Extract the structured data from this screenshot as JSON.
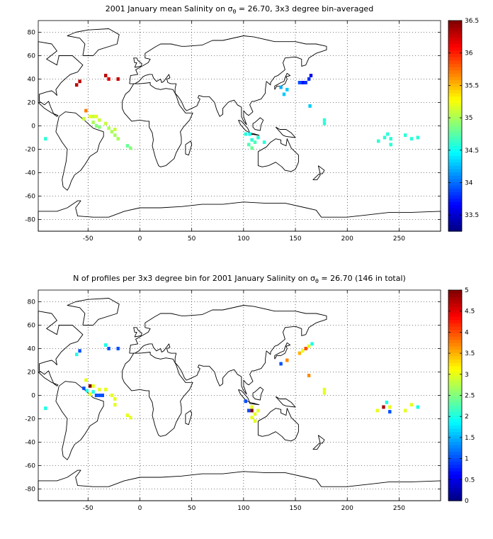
{
  "chart_data": [
    {
      "type": "heatmap",
      "title": "2001 January mean Salinity on σθ = 26.70, 3x3 degree bin-averaged",
      "title_parts": {
        "before": "2001 January mean Salinity on σ",
        "sub": "θ",
        "after": " = 26.70, 3x3 degree bin-averaged"
      },
      "xlim": [
        -98,
        290
      ],
      "ylim": [
        -90,
        90
      ],
      "xticks": [
        -50,
        0,
        50,
        100,
        150,
        200,
        250
      ],
      "yticks": [
        -80,
        -60,
        -40,
        -20,
        0,
        20,
        40,
        60,
        80
      ],
      "grid": true,
      "colorbar": {
        "min": 33.25,
        "max": 36.5,
        "ticks": [
          33.5,
          34,
          34.5,
          35,
          35.5,
          36,
          36.5
        ]
      },
      "points": [
        {
          "lon": -91,
          "lat": -11,
          "value": 34.6
        },
        {
          "lon": -61,
          "lat": 35,
          "value": 36.3
        },
        {
          "lon": -58,
          "lat": 38,
          "value": 36.3
        },
        {
          "lon": -52,
          "lat": 13,
          "value": 35.7
        },
        {
          "lon": -54,
          "lat": 6,
          "value": 35.1
        },
        {
          "lon": -48,
          "lat": 8,
          "value": 35.2
        },
        {
          "lon": -45,
          "lat": 8,
          "value": 35.1
        },
        {
          "lon": -42,
          "lat": 8,
          "value": 35.2
        },
        {
          "lon": -39,
          "lat": 5,
          "value": 35.1
        },
        {
          "lon": -45,
          "lat": 3,
          "value": 35.0
        },
        {
          "lon": -42,
          "lat": 0,
          "value": 34.9
        },
        {
          "lon": -39,
          "lat": -1,
          "value": 34.9
        },
        {
          "lon": -33,
          "lat": 2,
          "value": 35.1
        },
        {
          "lon": -30,
          "lat": -2,
          "value": 35.0
        },
        {
          "lon": -27,
          "lat": -5,
          "value": 35.0
        },
        {
          "lon": -24,
          "lat": -3,
          "value": 35.1
        },
        {
          "lon": -24,
          "lat": -8,
          "value": 35.0
        },
        {
          "lon": -21,
          "lat": -11,
          "value": 35.0
        },
        {
          "lon": -12,
          "lat": -17,
          "value": 34.8
        },
        {
          "lon": -9,
          "lat": -19,
          "value": 34.9
        },
        {
          "lon": -33,
          "lat": 43,
          "value": 36.3
        },
        {
          "lon": -30,
          "lat": 40,
          "value": 36.2
        },
        {
          "lon": -21,
          "lat": 40,
          "value": 36.3
        },
        {
          "lon": 102,
          "lat": -7,
          "value": 34.6
        },
        {
          "lon": 106,
          "lat": -7,
          "value": 34.5
        },
        {
          "lon": 108,
          "lat": -12,
          "value": 34.6
        },
        {
          "lon": 105,
          "lat": -16,
          "value": 34.7
        },
        {
          "lon": 108,
          "lat": -19,
          "value": 34.8
        },
        {
          "lon": 111,
          "lat": -14,
          "value": 34.7
        },
        {
          "lon": 114,
          "lat": -10,
          "value": 34.6
        },
        {
          "lon": 120,
          "lat": -14,
          "value": 34.6
        },
        {
          "lon": 136,
          "lat": 33,
          "value": 34.2
        },
        {
          "lon": 139,
          "lat": 27,
          "value": 34.3
        },
        {
          "lon": 142,
          "lat": 31,
          "value": 34.3
        },
        {
          "lon": 154,
          "lat": 37,
          "value": 33.9
        },
        {
          "lon": 157,
          "lat": 37,
          "value": 33.7
        },
        {
          "lon": 160,
          "lat": 37,
          "value": 33.8
        },
        {
          "lon": 163,
          "lat": 40,
          "value": 33.8
        },
        {
          "lon": 165,
          "lat": 43,
          "value": 33.6
        },
        {
          "lon": 164,
          "lat": 17,
          "value": 34.3
        },
        {
          "lon": 178,
          "lat": 5,
          "value": 34.6
        },
        {
          "lon": 178,
          "lat": 2,
          "value": 34.6
        },
        {
          "lon": 230,
          "lat": -13,
          "value": 34.6
        },
        {
          "lon": 236,
          "lat": -10,
          "value": 34.6
        },
        {
          "lon": 239,
          "lat": -7,
          "value": 34.6
        },
        {
          "lon": 242,
          "lat": -11,
          "value": 34.6
        },
        {
          "lon": 242,
          "lat": -16,
          "value": 34.6
        },
        {
          "lon": 256,
          "lat": -8,
          "value": 34.6
        },
        {
          "lon": 262,
          "lat": -11,
          "value": 34.6
        },
        {
          "lon": 268,
          "lat": -10,
          "value": 34.6
        }
      ]
    },
    {
      "type": "heatmap",
      "title": "N of profiles per 3x3 degree bin for 2001 January Salinity on σθ = 26.70 (146 in total)",
      "title_parts": {
        "before": "N of profiles per 3x3 degree bin for 2001 January Salinity on σ",
        "sub": "θ",
        "after": " = 26.70 (146 in total)"
      },
      "xlim": [
        -98,
        290
      ],
      "ylim": [
        -90,
        90
      ],
      "xticks": [
        -50,
        0,
        50,
        100,
        150,
        200,
        250
      ],
      "yticks": [
        -80,
        -60,
        -40,
        -20,
        0,
        20,
        40,
        60,
        80
      ],
      "grid": true,
      "colorbar": {
        "min": 0,
        "max": 5,
        "ticks": [
          0,
          0.5,
          1,
          1.5,
          2,
          2.5,
          3,
          3.5,
          4,
          4.5,
          5
        ]
      },
      "points": [
        {
          "lon": -91,
          "lat": -11,
          "value": 2
        },
        {
          "lon": -61,
          "lat": 35,
          "value": 2
        },
        {
          "lon": -58,
          "lat": 38,
          "value": 1
        },
        {
          "lon": -52,
          "lat": 13,
          "value": 3
        },
        {
          "lon": -54,
          "lat": 6,
          "value": 1
        },
        {
          "lon": -51,
          "lat": 4,
          "value": 2
        },
        {
          "lon": -48,
          "lat": 8,
          "value": 5
        },
        {
          "lon": -45,
          "lat": 8,
          "value": 3
        },
        {
          "lon": -45,
          "lat": 3,
          "value": 2
        },
        {
          "lon": -48,
          "lat": 1,
          "value": 3
        },
        {
          "lon": -42,
          "lat": 0,
          "value": 1
        },
        {
          "lon": -39,
          "lat": 0,
          "value": 1
        },
        {
          "lon": -36,
          "lat": 0,
          "value": 1
        },
        {
          "lon": -39,
          "lat": 5,
          "value": 3
        },
        {
          "lon": -33,
          "lat": 5,
          "value": 3
        },
        {
          "lon": -27,
          "lat": 0,
          "value": 3
        },
        {
          "lon": -24,
          "lat": -3,
          "value": 3
        },
        {
          "lon": -24,
          "lat": -8,
          "value": 3
        },
        {
          "lon": -12,
          "lat": -17,
          "value": 3
        },
        {
          "lon": -9,
          "lat": -19,
          "value": 3
        },
        {
          "lon": -33,
          "lat": 43,
          "value": 2
        },
        {
          "lon": -30,
          "lat": 40,
          "value": 1
        },
        {
          "lon": -21,
          "lat": 40,
          "value": 1
        },
        {
          "lon": 102,
          "lat": -5,
          "value": 1
        },
        {
          "lon": 105,
          "lat": -13,
          "value": 1
        },
        {
          "lon": 108,
          "lat": -13,
          "value": 5
        },
        {
          "lon": 108,
          "lat": -10,
          "value": 3
        },
        {
          "lon": 108,
          "lat": -19,
          "value": 3
        },
        {
          "lon": 111,
          "lat": -16,
          "value": 3
        },
        {
          "lon": 114,
          "lat": -13,
          "value": 3
        },
        {
          "lon": 111,
          "lat": -22,
          "value": 3
        },
        {
          "lon": 136,
          "lat": 27,
          "value": 1
        },
        {
          "lon": 142,
          "lat": 30,
          "value": 3.7
        },
        {
          "lon": 154,
          "lat": 36,
          "value": 3.5
        },
        {
          "lon": 157,
          "lat": 38,
          "value": 3
        },
        {
          "lon": 160,
          "lat": 40,
          "value": 4
        },
        {
          "lon": 163,
          "lat": 42,
          "value": 3
        },
        {
          "lon": 166,
          "lat": 44,
          "value": 2
        },
        {
          "lon": 163,
          "lat": 17,
          "value": 3.7
        },
        {
          "lon": 178,
          "lat": 5,
          "value": 3
        },
        {
          "lon": 178,
          "lat": 2,
          "value": 3
        },
        {
          "lon": 229,
          "lat": -13,
          "value": 3
        },
        {
          "lon": 235,
          "lat": -10,
          "value": 4.8
        },
        {
          "lon": 238,
          "lat": -6,
          "value": 2
        },
        {
          "lon": 241,
          "lat": -10,
          "value": 3
        },
        {
          "lon": 241,
          "lat": -14,
          "value": 1
        },
        {
          "lon": 256,
          "lat": -13,
          "value": 3
        },
        {
          "lon": 262,
          "lat": -8,
          "value": 3
        },
        {
          "lon": 268,
          "lat": -10,
          "value": 2
        }
      ]
    }
  ]
}
